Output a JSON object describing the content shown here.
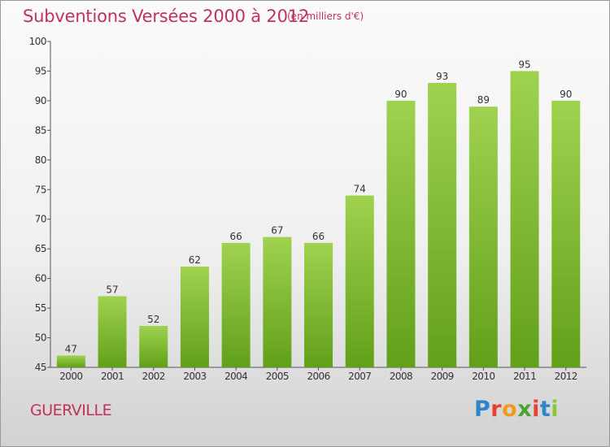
{
  "header": {
    "title": "Subventions Versées 2000 à 2012",
    "subtitle": "(en milliers d'€)"
  },
  "commune": "GUERVILLE",
  "logo": {
    "text": "Proxiti",
    "letter_colors": [
      "#2e86c8",
      "#e6432e",
      "#f39a1e",
      "#4aa334",
      "#e6432e",
      "#2e86c8",
      "#8cc63f"
    ]
  },
  "colors": {
    "title": "#c0325a",
    "bar_top": "#9fd24f",
    "bar_bottom": "#62a019",
    "axis": "#555555"
  },
  "chart_data": {
    "type": "bar",
    "title": "Subventions Versées 2000 à 2012",
    "subtitle": "(en milliers d'€)",
    "xlabel": "",
    "ylabel": "",
    "categories": [
      "2000",
      "2001",
      "2002",
      "2003",
      "2004",
      "2005",
      "2006",
      "2007",
      "2008",
      "2009",
      "2010",
      "2011",
      "2012"
    ],
    "values": [
      47,
      57,
      52,
      62,
      66,
      67,
      66,
      74,
      90,
      93,
      89,
      95,
      90
    ],
    "ylim": [
      45,
      100
    ],
    "yticks": [
      45,
      50,
      55,
      60,
      65,
      70,
      75,
      80,
      85,
      90,
      95,
      100
    ],
    "grid": false,
    "legend": "none",
    "data_labels": true
  }
}
